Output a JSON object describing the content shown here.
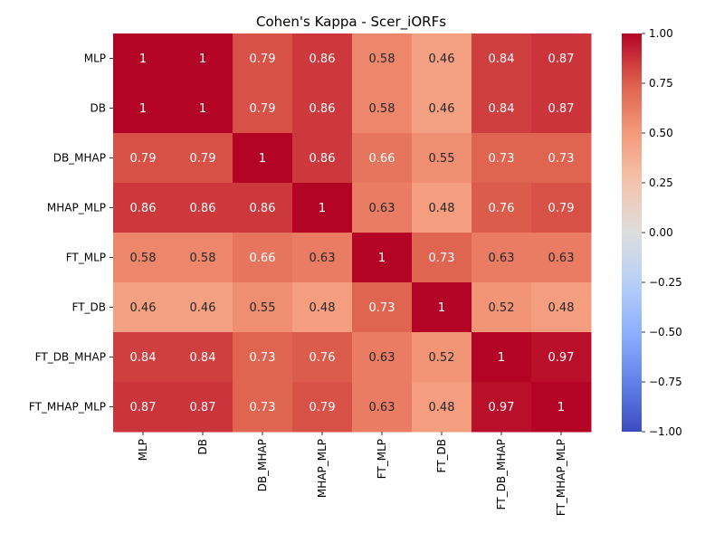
{
  "chart_data": {
    "type": "heatmap",
    "title": "Cohen's Kappa - Scer_iORFs",
    "xlabel": "",
    "ylabel": "",
    "row_labels": [
      "MLP",
      "DB",
      "DB_MHAP",
      "MHAP_MLP",
      "FT_MLP",
      "FT_DB",
      "FT_DB_MHAP",
      "FT_MHAP_MLP"
    ],
    "col_labels": [
      "MLP",
      "DB",
      "DB_MHAP",
      "MHAP_MLP",
      "FT_MLP",
      "FT_DB",
      "FT_DB_MHAP",
      "FT_MHAP_MLP"
    ],
    "values": [
      [
        1,
        1,
        0.79,
        0.86,
        0.58,
        0.46,
        0.84,
        0.87
      ],
      [
        1,
        1,
        0.79,
        0.86,
        0.58,
        0.46,
        0.84,
        0.87
      ],
      [
        0.79,
        0.79,
        1,
        0.86,
        0.66,
        0.55,
        0.73,
        0.73
      ],
      [
        0.86,
        0.86,
        0.86,
        1,
        0.63,
        0.48,
        0.76,
        0.79
      ],
      [
        0.58,
        0.58,
        0.66,
        0.63,
        1,
        0.73,
        0.63,
        0.63
      ],
      [
        0.46,
        0.46,
        0.55,
        0.48,
        0.73,
        1,
        0.52,
        0.48
      ],
      [
        0.84,
        0.84,
        0.73,
        0.76,
        0.63,
        0.52,
        1,
        0.97
      ],
      [
        0.87,
        0.87,
        0.73,
        0.79,
        0.63,
        0.48,
        0.97,
        1
      ]
    ],
    "colormap": "coolwarm",
    "vmin": -1.0,
    "vmax": 1.0,
    "colorbar_ticks": [
      "1.00",
      "0.75",
      "0.50",
      "0.25",
      "0.00",
      "−0.25",
      "−0.50",
      "−0.75",
      "−1.00"
    ],
    "colorbar_tick_values": [
      1.0,
      0.75,
      0.5,
      0.25,
      0.0,
      -0.25,
      -0.5,
      -0.75,
      -1.0
    ],
    "annotated": true,
    "grid": false
  }
}
